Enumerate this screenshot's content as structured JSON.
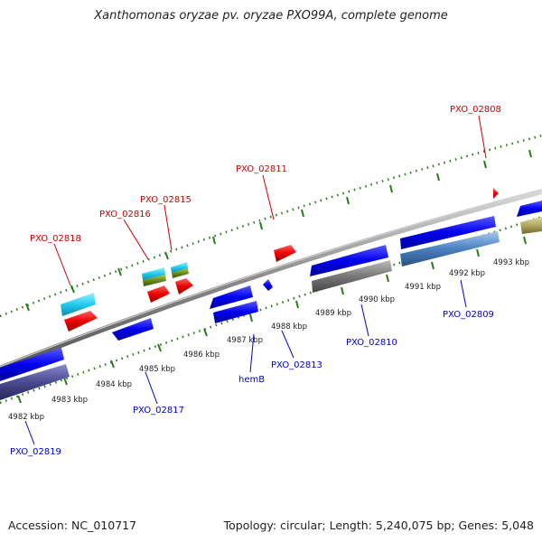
{
  "title": "Xanthomonas oryzae pv. oryzae PXO99A, complete genome",
  "footer": {
    "accession": "Accession: NC_010717",
    "stats": "Topology: circular; Length: 5,240,075 bp; Genes: 5,048"
  },
  "colors": {
    "forward_label": "#cc0000",
    "reverse_label": "#0000cc",
    "backbone": "#888888",
    "ticks": "#2a7a1a",
    "gene_blue": "#0000ee",
    "gene_red": "#ee0000",
    "gene_cyan": "#22ccee",
    "gene_olive": "#6b8a1a",
    "gene_gray": "#777777",
    "gene_steel": "#4a80c0",
    "gene_slate": "#4a4a90",
    "gene_khaki": "#b0a860"
  },
  "labels_forward": [
    "PXO_02808",
    "PXO_02811",
    "PXO_02815",
    "PXO_02816",
    "PXO_02818"
  ],
  "labels_reverse": [
    "PXO_02809",
    "PXO_02810",
    "PXO_02813",
    "hemB",
    "PXO_02817",
    "PXO_02819"
  ],
  "kbp_ticks": [
    "4982 kbp",
    "4983 kbp",
    "4984 kbp",
    "4985 kbp",
    "4986 kbp",
    "4987 kbp",
    "4988 kbp",
    "4989 kbp",
    "4990 kbp",
    "4991 kbp",
    "4992 kbp",
    "4993 kbp"
  ]
}
